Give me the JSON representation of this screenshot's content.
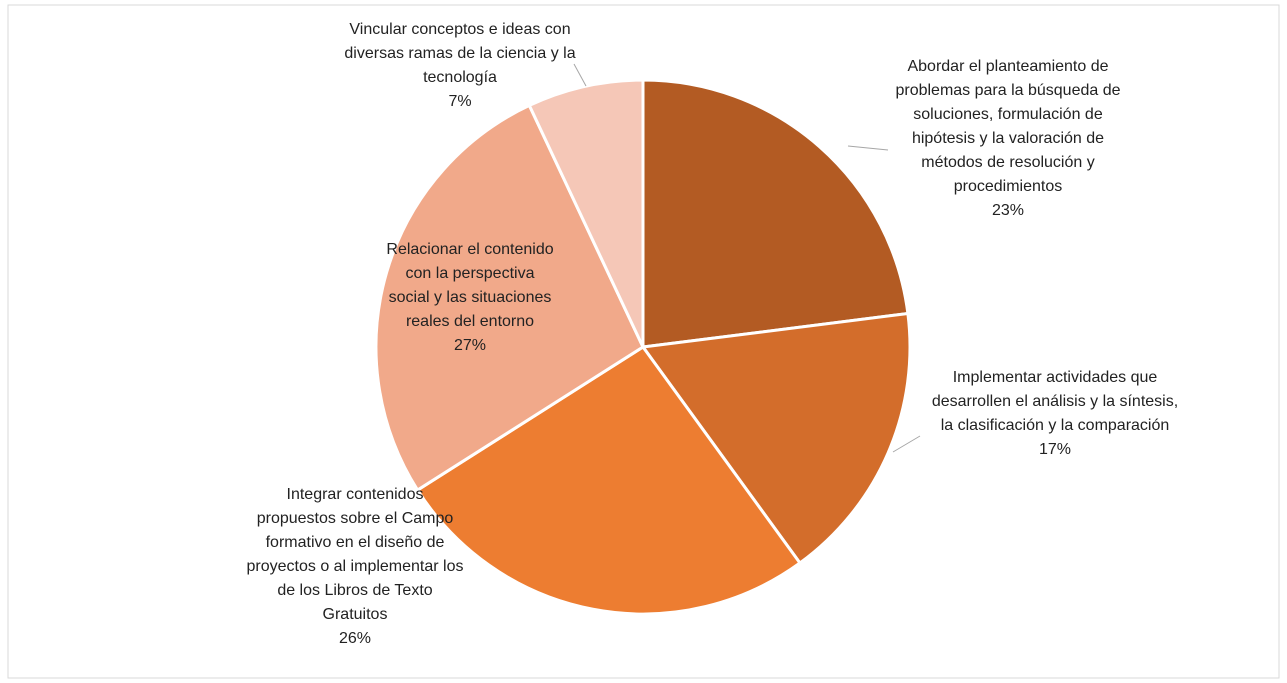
{
  "chart_data": {
    "type": "pie",
    "categories": [
      "Abordar el planteamiento de problemas para la búsqueda de soluciones, formulación de hipótesis y la valoración de métodos de resolución y procedimientos",
      "Implementar actividades que desarrollen el análisis y la síntesis, la clasificación y la comparación",
      "Integrar contenidos propuestos sobre el Campo formativo en el diseño de proyectos o al implementar los de los Libros de Texto Gratuitos",
      "Relacionar el contenido con la perspectiva social y las situaciones reales del entorno",
      "Vincular conceptos e ideas con diversas ramas de la ciencia y la tecnología"
    ],
    "values": [
      23,
      17,
      26,
      27,
      7
    ],
    "value_labels": [
      "23%",
      "17%",
      "26%",
      "27%",
      "7%"
    ],
    "colors": [
      "#b35b23",
      "#d36d2b",
      "#ed7d31",
      "#f1a98a",
      "#f5c7b7"
    ]
  }
}
